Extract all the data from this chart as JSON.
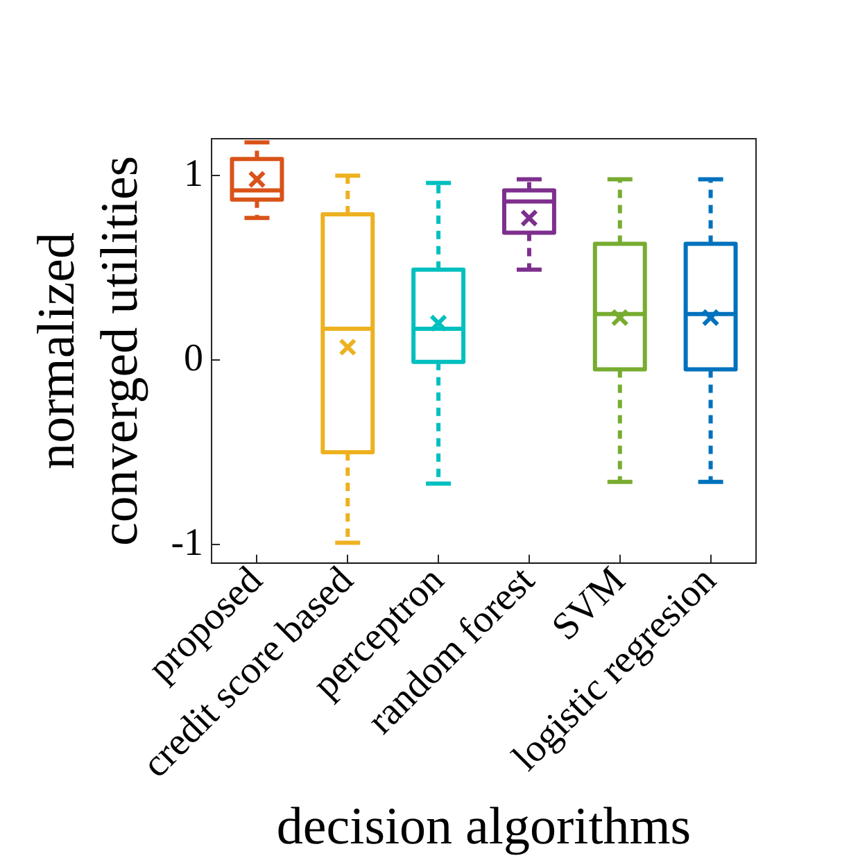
{
  "chart_data": {
    "type": "box",
    "xlabel": "decision algorithms",
    "ylabel": "normalized converged utilities",
    "categories": [
      "proposed",
      "credit score based",
      "perceptron",
      "random forest",
      "SVM",
      "logistic regresion"
    ],
    "colors": [
      "#d95319",
      "#edb120",
      "#00bfbf",
      "#7e2f8e",
      "#77ac30",
      "#0072bd"
    ],
    "boxes": [
      {
        "low": 0.77,
        "q1": 0.87,
        "median": 0.92,
        "q3": 1.09,
        "high": 1.18,
        "mean": 0.98
      },
      {
        "low": -0.99,
        "q1": -0.5,
        "median": 0.17,
        "q3": 0.79,
        "high": 1.0,
        "mean": 0.07
      },
      {
        "low": -0.67,
        "q1": -0.01,
        "median": 0.17,
        "q3": 0.49,
        "high": 0.96,
        "mean": 0.2
      },
      {
        "low": 0.49,
        "q1": 0.69,
        "median": 0.86,
        "q3": 0.92,
        "high": 0.98,
        "mean": 0.77
      },
      {
        "low": -0.66,
        "q1": -0.05,
        "median": 0.25,
        "q3": 0.63,
        "high": 0.98,
        "mean": 0.23
      },
      {
        "low": -0.66,
        "q1": -0.05,
        "median": 0.25,
        "q3": 0.63,
        "high": 0.98,
        "mean": 0.23
      }
    ],
    "ylim": [
      -1.1,
      1.2
    ],
    "yticks": [
      -1,
      0,
      1
    ],
    "grid": false,
    "legend": false,
    "line_style": "dashed"
  }
}
